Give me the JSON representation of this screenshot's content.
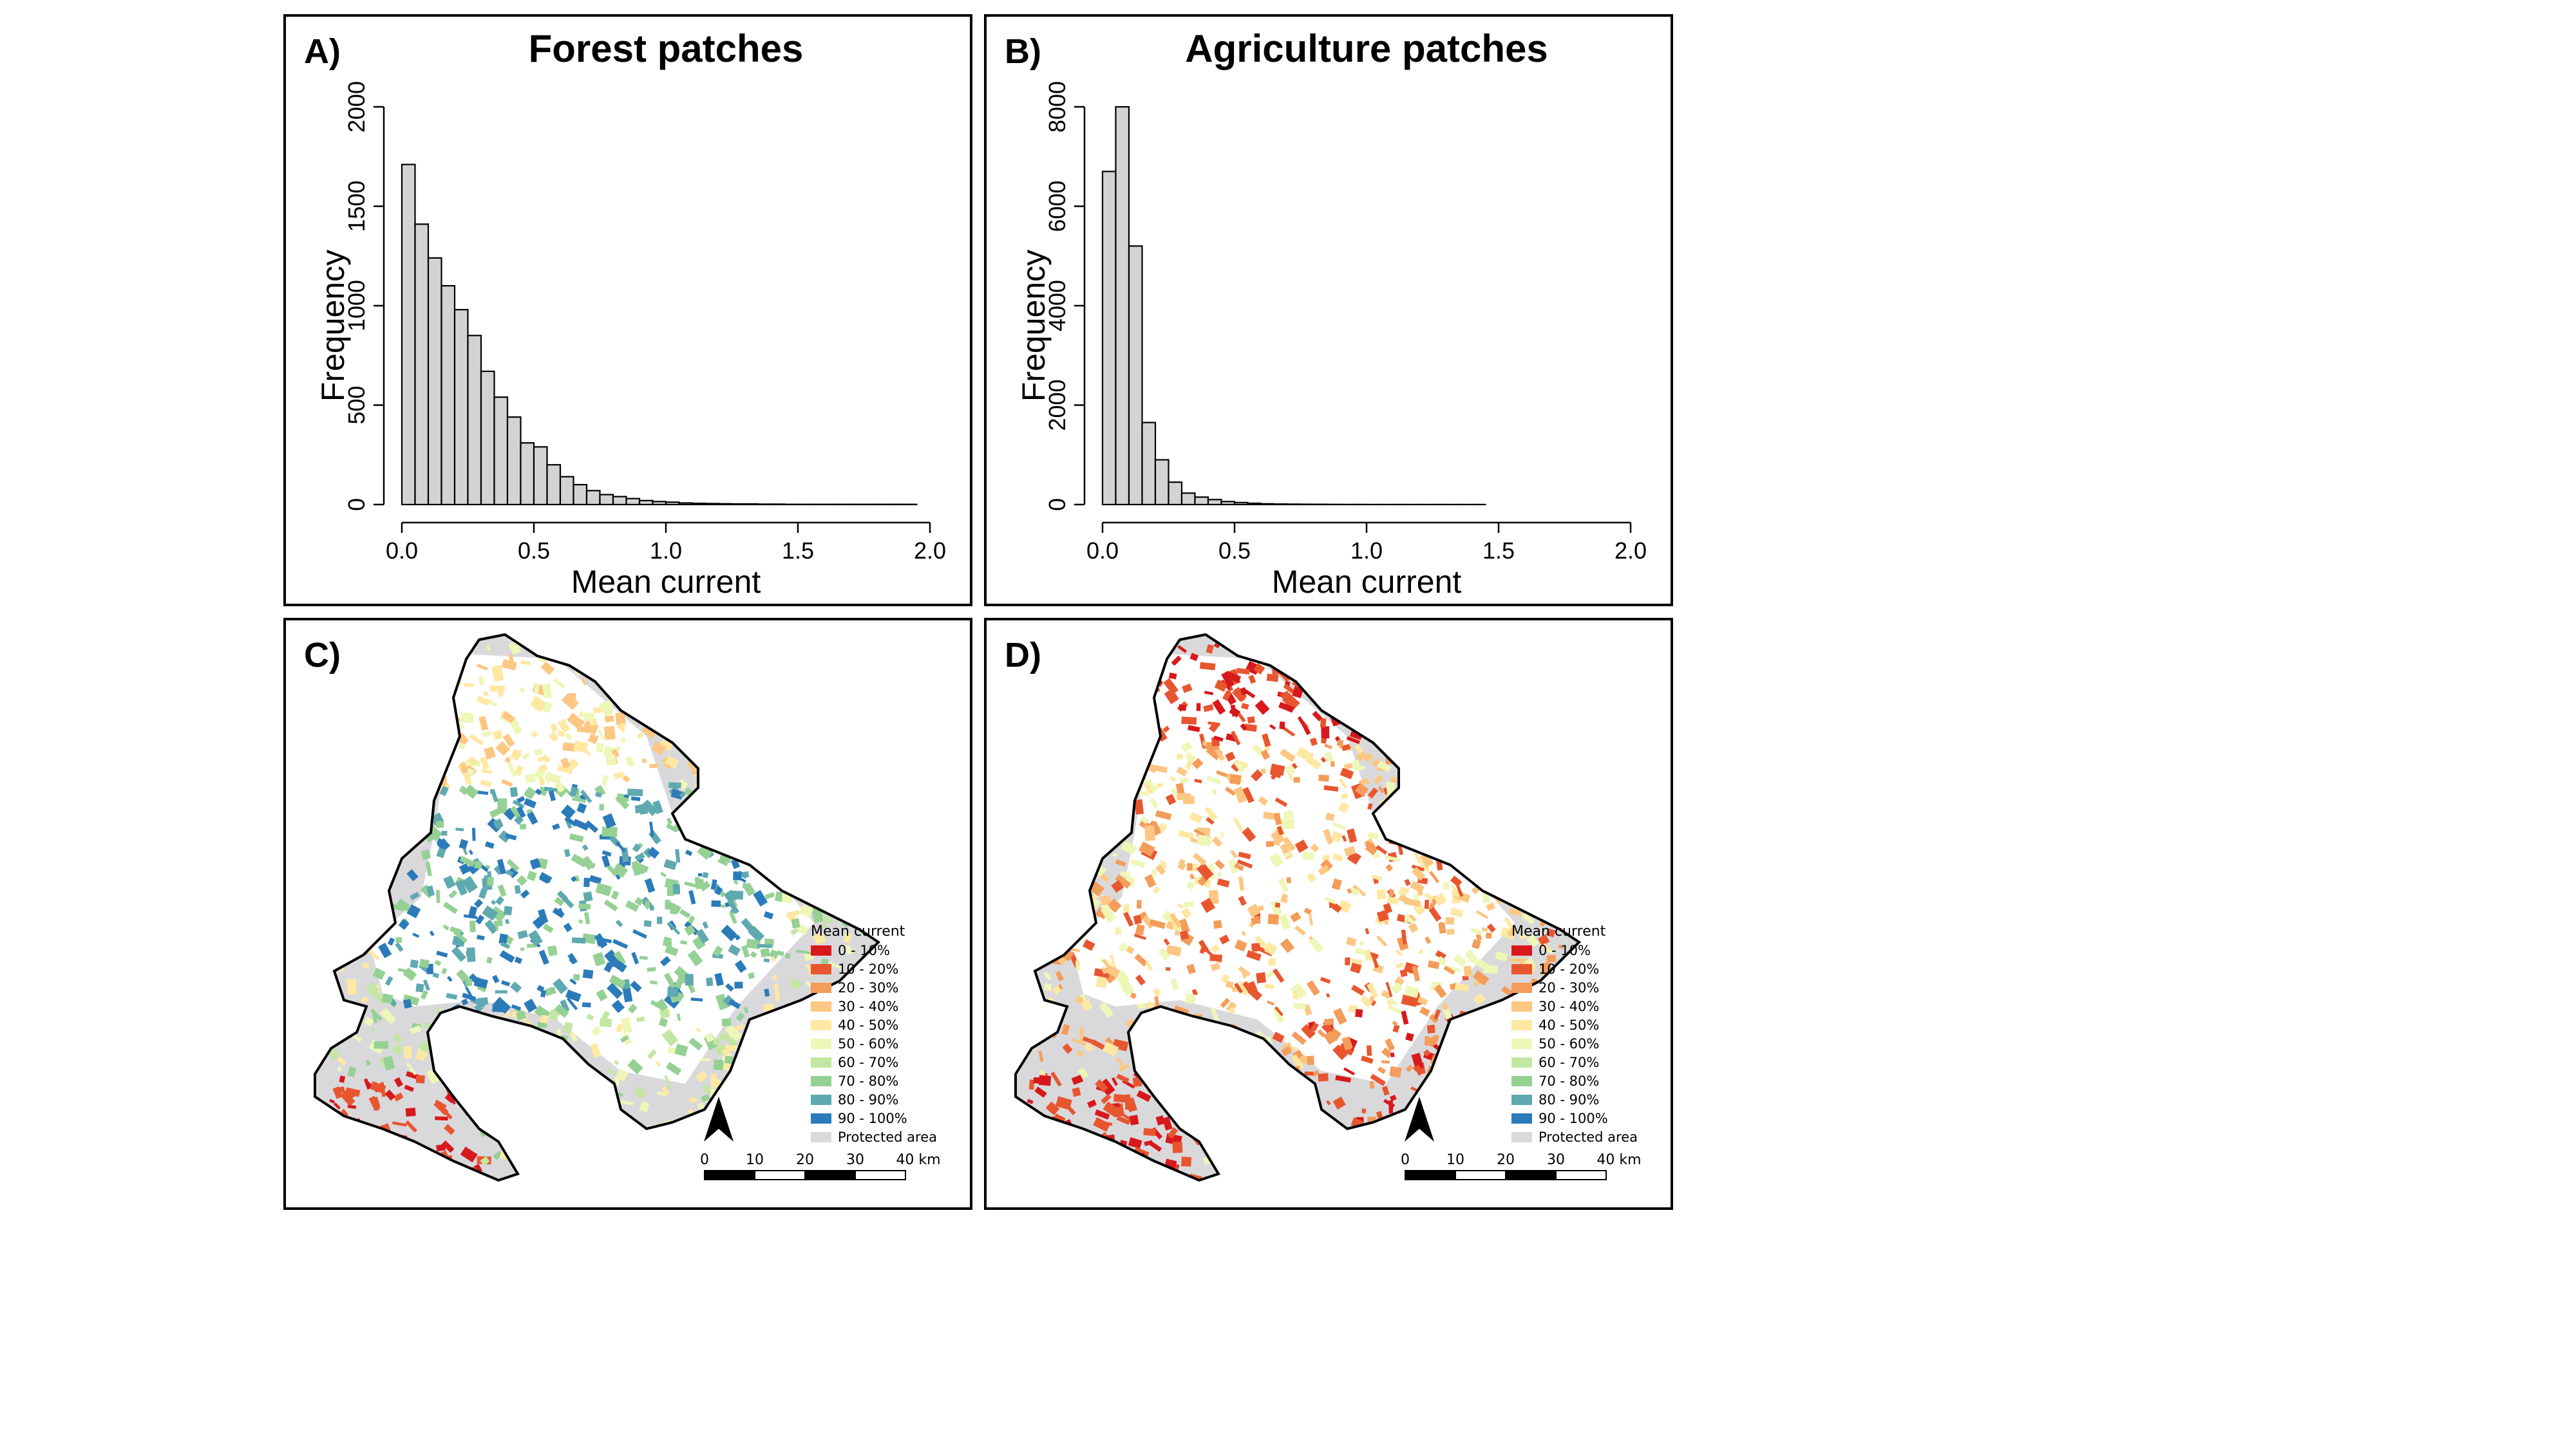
{
  "chart_data": [
    {
      "panel": "A)",
      "type": "bar",
      "title": "Forest patches",
      "xlabel": "Mean current",
      "ylabel": "Frequency",
      "xlim": [
        0,
        2.0
      ],
      "ylim": [
        0,
        2000
      ],
      "xticks": [
        "0.0",
        "0.5",
        "1.0",
        "1.5",
        "2.0"
      ],
      "yticks": [
        "0",
        "500",
        "1000",
        "1500",
        "2000"
      ],
      "bin_width": 0.05,
      "values": [
        1710,
        1410,
        1240,
        1100,
        980,
        850,
        670,
        540,
        440,
        310,
        290,
        200,
        140,
        100,
        70,
        50,
        40,
        30,
        20,
        15,
        12,
        8,
        6,
        5,
        4,
        3,
        3,
        2,
        2,
        1,
        1,
        1,
        1,
        1,
        1,
        1,
        1,
        1,
        1,
        0
      ]
    },
    {
      "panel": "B)",
      "type": "bar",
      "title": "Agriculture patches",
      "xlabel": "Mean current",
      "ylabel": "Frequency",
      "xlim": [
        0,
        2.0
      ],
      "ylim": [
        0,
        8000
      ],
      "xticks": [
        "0.0",
        "0.5",
        "1.0",
        "1.5",
        "2.0"
      ],
      "yticks": [
        "0",
        "2000",
        "4000",
        "6000",
        "8000"
      ],
      "bin_width": 0.05,
      "values": [
        6700,
        8000,
        5200,
        1650,
        900,
        450,
        230,
        150,
        100,
        60,
        40,
        25,
        15,
        10,
        8,
        6,
        5,
        3,
        2,
        2,
        1,
        1,
        1,
        1,
        1,
        1,
        1,
        1,
        1,
        0,
        0,
        0,
        0,
        0,
        0,
        0,
        0,
        0,
        0,
        0
      ]
    }
  ],
  "maps": [
    {
      "panel": "C)",
      "theme": "forest",
      "legend_title": "Mean current",
      "legend": [
        {
          "label": "0 - 10%",
          "color": "#d7191c"
        },
        {
          "label": "10 - 20%",
          "color": "#e8562f"
        },
        {
          "label": "20 - 30%",
          "color": "#f49c5a"
        },
        {
          "label": "30 - 40%",
          "color": "#fcc783"
        },
        {
          "label": "40 - 50%",
          "color": "#fee8a2"
        },
        {
          "label": "50 - 60%",
          "color": "#eef7b8"
        },
        {
          "label": "60 - 70%",
          "color": "#c4e6a3"
        },
        {
          "label": "70 - 80%",
          "color": "#95d094"
        },
        {
          "label": "80 - 90%",
          "color": "#5fa9b0"
        },
        {
          "label": "90 - 100%",
          "color": "#2b7bba"
        },
        {
          "label": "Protected area",
          "color": "#d9d9dc"
        }
      ],
      "scale_labels": [
        "0",
        "10",
        "20",
        "30",
        "40 km"
      ]
    },
    {
      "panel": "D)",
      "theme": "agriculture",
      "legend_title": "Mean current",
      "legend": [
        {
          "label": "0 - 10%",
          "color": "#d7191c"
        },
        {
          "label": "10 - 20%",
          "color": "#e8562f"
        },
        {
          "label": "20 - 30%",
          "color": "#f49c5a"
        },
        {
          "label": "30 - 40%",
          "color": "#fcc783"
        },
        {
          "label": "40 - 50%",
          "color": "#fee8a2"
        },
        {
          "label": "50 - 60%",
          "color": "#eef7b8"
        },
        {
          "label": "60 - 70%",
          "color": "#c4e6a3"
        },
        {
          "label": "70 - 80%",
          "color": "#95d094"
        },
        {
          "label": "80 - 90%",
          "color": "#5fa9b0"
        },
        {
          "label": "90 - 100%",
          "color": "#2b7bba"
        },
        {
          "label": "Protected area",
          "color": "#d9d9dc"
        }
      ],
      "scale_labels": [
        "0",
        "10",
        "20",
        "30",
        "40 km"
      ]
    }
  ]
}
